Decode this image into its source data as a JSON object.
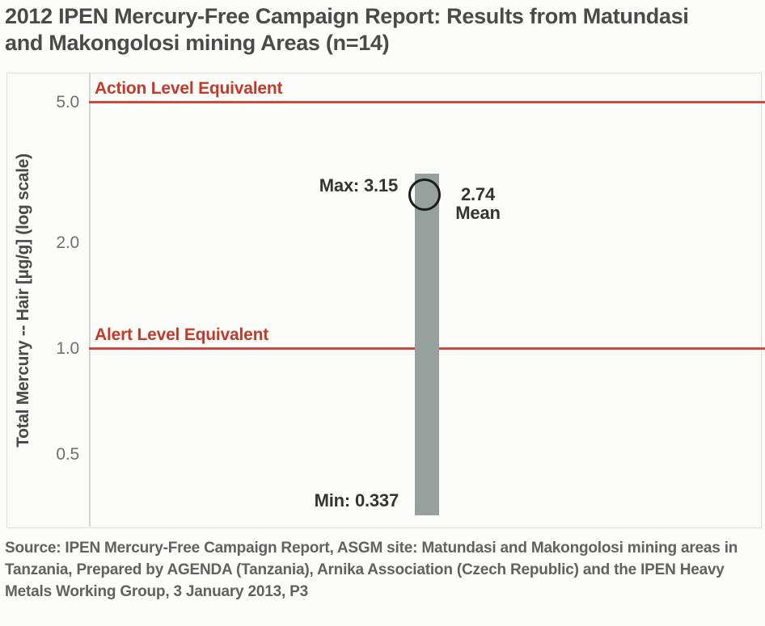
{
  "title": {
    "line1": "2012 IPEN Mercury-Free Campaign Report: Results from Matundasi",
    "line2": "and Makongolosi mining Areas (n=14)"
  },
  "chart_data": {
    "type": "range-bar",
    "title": "2012 IPEN Mercury-Free Campaign Report: Results from Matundasi and Makongolosi mining Areas (n=14)",
    "sample_size": 14,
    "ylabel": "Total Mercury -- Hair [µg/g] (log scale)",
    "yscale": "log",
    "ylim": [
      0.3,
      6.0
    ],
    "grid": false,
    "yticks": [
      {
        "label": "5.0",
        "value": 5.0
      },
      {
        "label": "2.0",
        "value": 2.0
      },
      {
        "label": "1.0",
        "value": 1.0
      },
      {
        "label": "0.5",
        "value": 0.5
      }
    ],
    "series": {
      "name": "Total Mercury in Hair",
      "min": 0.337,
      "max": 3.15,
      "mean": 2.74
    },
    "reference_lines": [
      {
        "label": "Action Level Equivalent",
        "value": 5.0
      },
      {
        "label": "Alert Level Equivalent",
        "value": 1.0
      }
    ],
    "annotations": {
      "max_label": "Max: 3.15",
      "min_label": "Min: 0.337",
      "mean_value_label": "2.74",
      "mean_word_label": "Mean"
    },
    "colors": {
      "reference_line": "#cd4a3d",
      "reference_text": "#c33a2c",
      "bar": "#96a09c",
      "mean_circle_stroke": "#1c1c1c",
      "title_text": "#4a4a4a",
      "tick_text": "#6f6f6f",
      "annotation_text": "#343434",
      "source_text": "#616163"
    }
  },
  "source": {
    "text": "Source: IPEN Mercury-Free Campaign Report, ASGM site: Matundasi and Makongolosi mining areas in Tanzania, Prepared by AGENDA (Tanzania), Arnika Association (Czech Republic) and the IPEN Heavy Metals Working Group, 3 January 2013, P3"
  }
}
